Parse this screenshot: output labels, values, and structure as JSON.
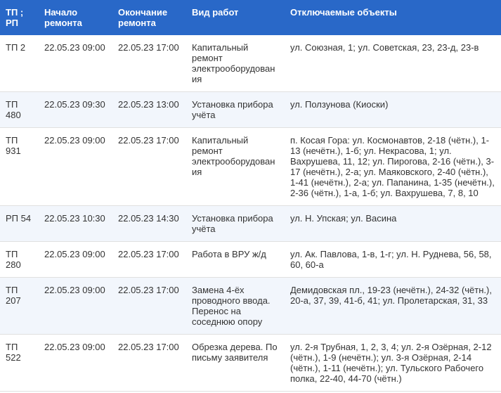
{
  "table": {
    "columns": [
      "ТП ; РП",
      "Начало ремонта",
      "Окончание ремонта",
      "Вид работ",
      "Отключаемые объекты"
    ],
    "rows": [
      {
        "tp": "ТП 2",
        "start": "22.05.23 09:00",
        "end": "22.05.23 17:00",
        "type": "Капитальный ремонт электрооборудования",
        "objects": "ул. Союзная, 1; ул. Советская, 23, 23-д, 23-в"
      },
      {
        "tp": "ТП 480",
        "start": "22.05.23 09:30",
        "end": "22.05.23 13:00",
        "type": "Установка прибора учёта",
        "objects": "ул. Ползунова (Киоски)"
      },
      {
        "tp": "ТП 931",
        "start": "22.05.23 09:00",
        "end": "22.05.23 17:00",
        "type": "Капитальный ремонт электрооборудования",
        "objects": "п. Косая Гора: ул. Космонавтов, 2-18 (чётн.), 1-13 (нечётн.), 1-б; ул. Некрасова, 1; ул. Вахрушева, 11, 12; ул. Пирогова, 2-16 (чётн.), 3-17 (нечётн.), 2-а; ул. Маяковского, 2-40 (чётн.), 1-41 (нечётн.), 2-а; ул. Папанина, 1-35 (нечётн.), 2-36 (чётн.), 1-а, 1-б; ул. Вахрушева, 7, 8, 10"
      },
      {
        "tp": "РП 54",
        "start": "22.05.23 10:30",
        "end": "22.05.23 14:30",
        "type": "Установка прибора учёта",
        "objects": "ул. Н. Упская; ул. Васина"
      },
      {
        "tp": "ТП 280",
        "start": "22.05.23 09:00",
        "end": "22.05.23 17:00",
        "type": "Работа в ВРУ ж/д",
        "objects": "ул. Ак. Павлова, 1-в, 1-г; ул. Н. Руднева, 56, 58, 60, 60-а"
      },
      {
        "tp": "ТП 207",
        "start": "22.05.23 09:00",
        "end": "22.05.23 17:00",
        "type": "Замена 4-ёх проводного ввода. Перенос на соседнюю опору",
        "objects": "Демидовская пл., 19-23 (нечётн.), 24-32 (чётн.), 20-а, 37, 39, 41-б, 41; ул. Пролетарская, 31, 33"
      },
      {
        "tp": "ТП 522",
        "start": "22.05.23 09:00",
        "end": "22.05.23 17:00",
        "type": "Обрезка дерева. По письму заявителя",
        "objects": "ул. 2-я Трубная, 1, 2, 3, 4; ул. 2-я Озёрная, 2-12 (чётн.), 1-9 (нечётн.); ул. 3-я Озёрная, 2-14 (чётн.), 1-11 (нечётн.); ул. Тульского Рабочего полка, 22-40, 44-70 (чётн.)"
      }
    ]
  }
}
